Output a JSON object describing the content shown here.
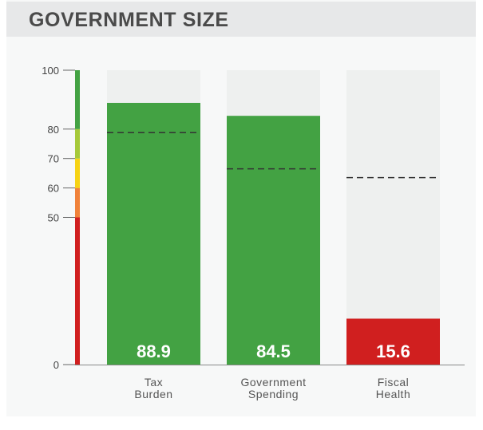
{
  "header": {
    "title": "GOVERNMENT SIZE"
  },
  "chart_data": {
    "type": "bar",
    "title": "GOVERNMENT SIZE",
    "categories": [
      "Tax Burden",
      "Government Spending",
      "Fiscal Health"
    ],
    "category_lines": [
      [
        "Tax",
        "Burden"
      ],
      [
        "Government",
        "Spending"
      ],
      [
        "Fiscal",
        "Health"
      ]
    ],
    "values": [
      88.9,
      84.5,
      15.6
    ],
    "value_labels": [
      "88.9",
      "84.5",
      "15.6"
    ],
    "reference_values": [
      78.8,
      66.5,
      63.5
    ],
    "bar_colors": [
      "#43a243",
      "#43a243",
      "#d01f1f"
    ],
    "ylim": [
      0,
      100
    ],
    "yticks": [
      0,
      50,
      60,
      70,
      80,
      100
    ],
    "ytick_labels": [
      "0",
      "50",
      "60",
      "70",
      "80",
      "100"
    ],
    "scale_bands": [
      {
        "from": 0,
        "to": 50,
        "color": "#d01f1f"
      },
      {
        "from": 50,
        "to": 60,
        "color": "#f0823a"
      },
      {
        "from": 60,
        "to": 70,
        "color": "#f6d314"
      },
      {
        "from": 70,
        "to": 80,
        "color": "#a6c93a"
      },
      {
        "from": 80,
        "to": 100,
        "color": "#43a243"
      }
    ],
    "grid": false,
    "legend": "none"
  }
}
